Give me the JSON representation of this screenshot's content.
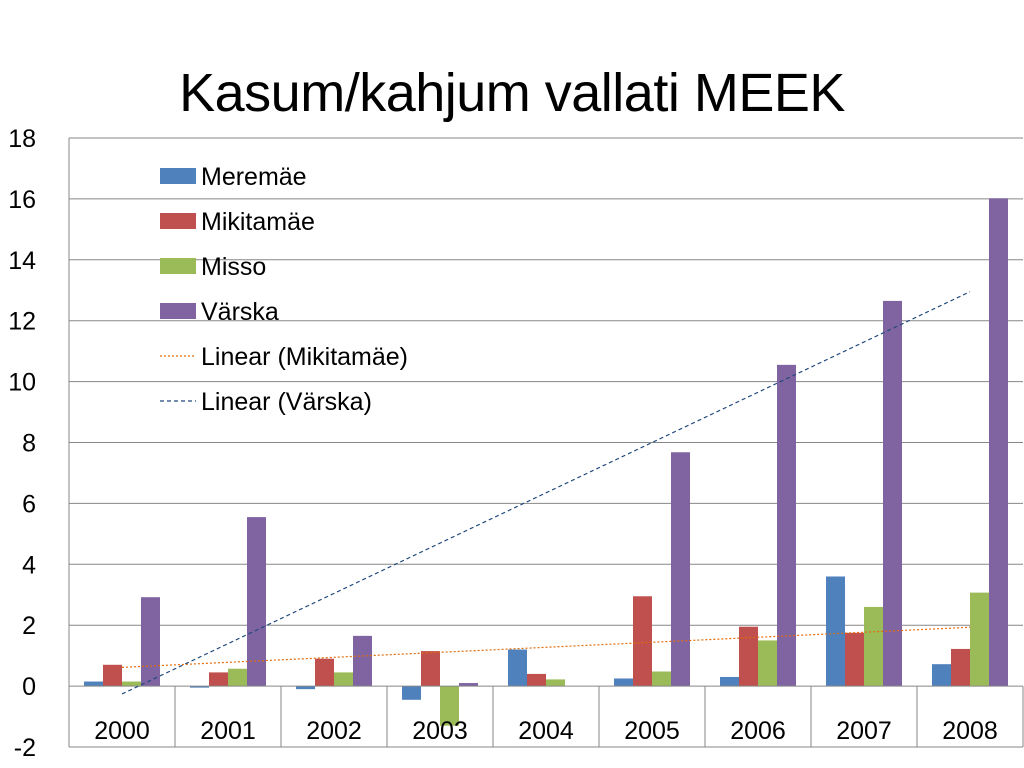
{
  "chart_data": {
    "type": "bar",
    "title": "Kasum/kahjum vallati MEEK",
    "xlabel": "",
    "ylabel": "",
    "ylim": [
      -2,
      18
    ],
    "yticks": [
      -2,
      0,
      2,
      4,
      6,
      8,
      10,
      12,
      14,
      16,
      18
    ],
    "grid": true,
    "legend": "top-left",
    "categories": [
      "2000",
      "2001",
      "2002",
      "2003",
      "2004",
      "2005",
      "2006",
      "2007",
      "2008"
    ],
    "series": [
      {
        "name": "Meremäe",
        "color": "#4f81bd",
        "values": [
          0.15,
          -0.05,
          -0.1,
          -0.45,
          1.2,
          0.25,
          0.3,
          3.6,
          0.72
        ]
      },
      {
        "name": "Mikitamäe",
        "color": "#c0504d",
        "values": [
          0.7,
          0.45,
          0.9,
          1.15,
          0.4,
          2.95,
          1.95,
          1.75,
          1.22
        ]
      },
      {
        "name": "Misso",
        "color": "#9bbb59",
        "values": [
          0.15,
          0.57,
          0.45,
          -1.3,
          0.22,
          0.48,
          1.5,
          2.6,
          3.07
        ]
      },
      {
        "name": "Värska",
        "color": "#8064a2",
        "values": [
          2.92,
          5.55,
          1.65,
          0.1,
          0.0,
          7.68,
          10.55,
          12.65,
          16.02
        ]
      }
    ],
    "trendlines": [
      {
        "name": "Linear (Mikitamäe)",
        "color": "#e46c0a",
        "style": "dotted",
        "series": "Mikitamäe"
      },
      {
        "name": "Linear (Värska)",
        "color": "#1f497d",
        "style": "dashed",
        "series": "Värska"
      }
    ]
  }
}
